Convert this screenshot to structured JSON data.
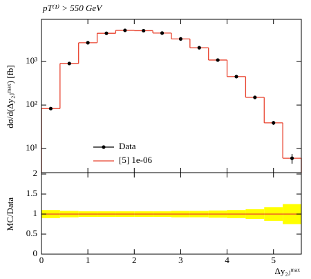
{
  "chart_data": {
    "type": "histogram",
    "title": "pT⁽¹⁾ > 550 GeV",
    "y_label": "dσ/d(Δy₂ⱼᵐᵃˣ) [fb]",
    "x_label": "Δy₂ⱼᵐᵃˣ",
    "ratio_label": "MC/Data",
    "bins": [
      0,
      0.4,
      0.8,
      1.2,
      1.6,
      2.0,
      2.4,
      2.8,
      3.2,
      3.6,
      4.0,
      4.4,
      4.8,
      5.2,
      5.6
    ],
    "xlim": [
      0,
      5.6
    ],
    "xticks": [
      0,
      1,
      2,
      3,
      4,
      5
    ],
    "ylim": [
      2.8,
      9300
    ],
    "log_y": true,
    "yticks": [
      {
        "value": 10,
        "label": "10¹"
      },
      {
        "value": 100,
        "label": "10²"
      },
      {
        "value": 1000,
        "label": "10³"
      }
    ],
    "series": [
      {
        "name": "Data",
        "color": "#000000",
        "values": [
          83,
          900,
          2700,
          4450,
          5200,
          5100,
          4500,
          3300,
          2070,
          1080,
          450,
          150,
          39,
          6
        ],
        "errors": [
          5,
          30,
          60,
          90,
          100,
          100,
          90,
          70,
          50,
          35,
          20,
          10,
          4,
          1.5
        ]
      },
      {
        "name": "[5] 1e-06",
        "color": "#e8412c",
        "values": [
          83,
          900,
          2700,
          4450,
          5200,
          5100,
          4500,
          3300,
          2070,
          1080,
          450,
          150,
          39,
          6
        ]
      }
    ],
    "ratio": {
      "ylim": [
        0,
        2
      ],
      "yticks": [
        0,
        0.5,
        1,
        1.5,
        2
      ],
      "values": [
        1,
        1,
        1,
        1,
        1,
        1,
        1,
        1,
        1,
        1,
        1,
        1,
        1,
        1
      ],
      "band": [
        0.1,
        0.08,
        0.07,
        0.07,
        0.07,
        0.07,
        0.07,
        0.08,
        0.08,
        0.09,
        0.1,
        0.12,
        0.17,
        0.25
      ]
    }
  }
}
